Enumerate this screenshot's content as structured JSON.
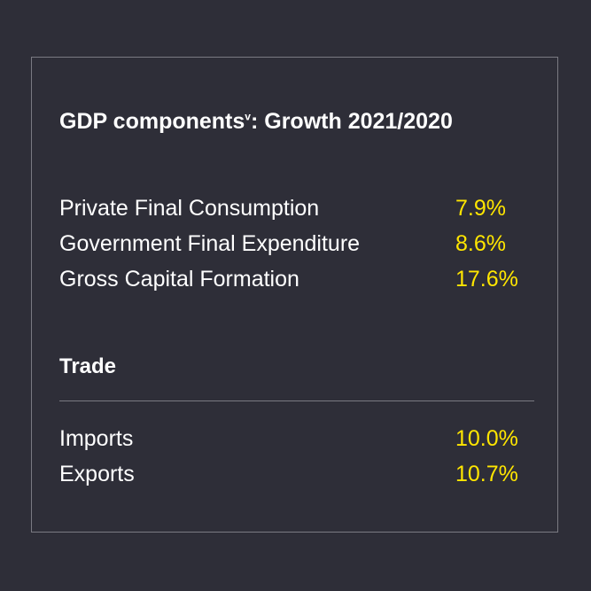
{
  "colors": {
    "background": "#2e2e38",
    "text": "#ffffff",
    "value_accent": "#ffe600",
    "border": "#7a7a82"
  },
  "title": {
    "main": "GDP components",
    "superscript": "v",
    "rest": ": Growth 2021/2020"
  },
  "components": [
    {
      "label": "Private Final Consumption",
      "value": "7.9%"
    },
    {
      "label": "Government Final Expenditure",
      "value": "8.6%"
    },
    {
      "label": "Gross Capital Formation",
      "value": "17.6%"
    }
  ],
  "trade": {
    "heading": "Trade",
    "items": [
      {
        "label": "Imports",
        "value": "10.0%"
      },
      {
        "label": "Exports",
        "value": "10.7%"
      }
    ]
  }
}
